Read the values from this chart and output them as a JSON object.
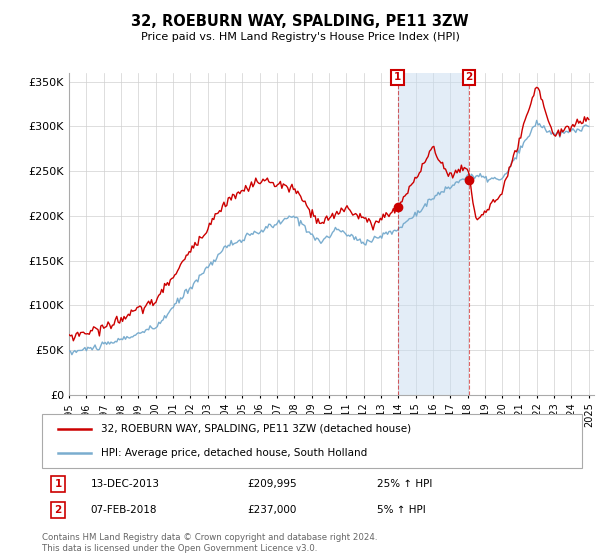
{
  "title": "32, ROEBURN WAY, SPALDING, PE11 3ZW",
  "subtitle": "Price paid vs. HM Land Registry's House Price Index (HPI)",
  "legend_line1": "32, ROEBURN WAY, SPALDING, PE11 3ZW (detached house)",
  "legend_line2": "HPI: Average price, detached house, South Holland",
  "marker1_date": "13-DEC-2013",
  "marker1_price": 209995,
  "marker1_hpi": "25% ↑ HPI",
  "marker2_date": "07-FEB-2018",
  "marker2_price": 237000,
  "marker2_hpi": "5% ↑ HPI",
  "footer": "Contains HM Land Registry data © Crown copyright and database right 2024.\nThis data is licensed under the Open Government Licence v3.0.",
  "red_color": "#cc0000",
  "blue_color": "#7aadcf",
  "fill_color": "#c8ddf0",
  "ylim": [
    0,
    360000
  ],
  "yticks": [
    0,
    50000,
    100000,
    150000,
    200000,
    250000,
    300000,
    350000
  ],
  "start_year": 1995,
  "end_year": 2025,
  "marker1_x": 2013.96,
  "marker2_x": 2018.09
}
